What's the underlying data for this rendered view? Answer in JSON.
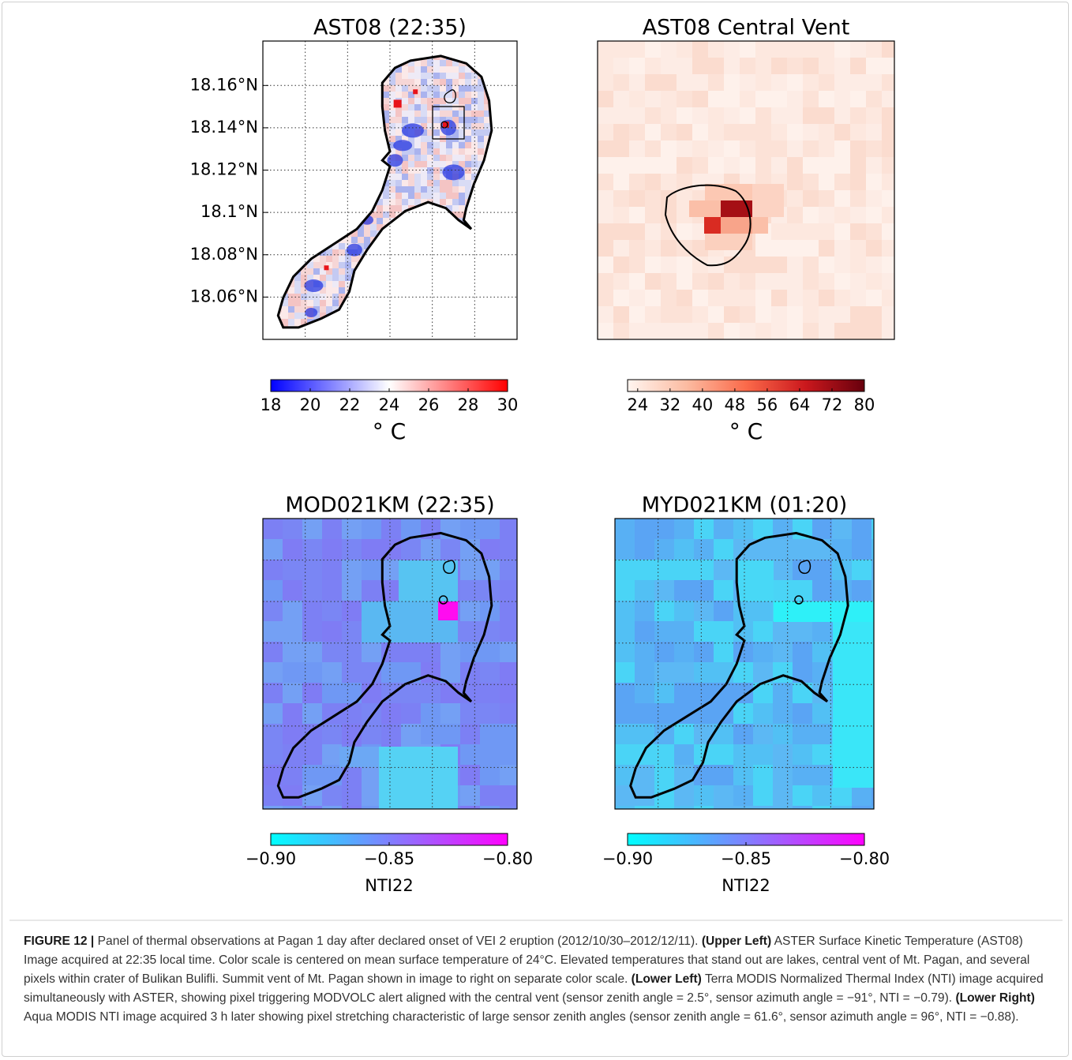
{
  "chart_data": [
    {
      "type": "heatmap",
      "title": "AST08 (22:35)",
      "ylim": [
        18.04,
        18.181
      ],
      "yticks": [
        {
          "value": 18.06,
          "label": "18.06°N"
        },
        {
          "value": 18.08,
          "label": "18.08°N"
        },
        {
          "value": 18.1,
          "label": "18.1°N"
        },
        {
          "value": 18.12,
          "label": "18.12°N"
        },
        {
          "value": 18.14,
          "label": "18.14°N"
        },
        {
          "value": 18.16,
          "label": "18.16°N"
        }
      ],
      "grid": true,
      "colorbar": {
        "lim": [
          18,
          30
        ],
        "ticks": [
          18,
          20,
          22,
          24,
          26,
          28,
          30
        ],
        "label": "° C",
        "colors": [
          "#0000ff",
          "#ffffff",
          "#ff0000"
        ]
      }
    },
    {
      "type": "heatmap",
      "title": "AST08 Central Vent",
      "colorbar": {
        "lim": [
          21.5,
          80
        ],
        "ticks": [
          24,
          32,
          40,
          48,
          56,
          64,
          72,
          80
        ],
        "label": "° C",
        "colors": [
          "#fff5f0",
          "#fcbba1",
          "#fb6a4a",
          "#cb181d",
          "#67000d"
        ]
      }
    },
    {
      "type": "heatmap",
      "title": "MOD021KM (22:35)",
      "grid": true,
      "colorbar": {
        "lim": [
          -0.9,
          -0.8
        ],
        "ticks": [
          {
            "value": -0.9,
            "label": "−0.90"
          },
          {
            "value": -0.85,
            "label": "−0.85"
          },
          {
            "value": -0.8,
            "label": "−0.80"
          }
        ],
        "label": "NTI22",
        "colors": [
          "#00ffff",
          "#ff00ff"
        ]
      }
    },
    {
      "type": "heatmap",
      "title": "MYD021KM (01:20)",
      "grid": true,
      "colorbar": {
        "lim": [
          -0.9,
          -0.8
        ],
        "ticks": [
          {
            "value": -0.9,
            "label": "−0.90"
          },
          {
            "value": -0.85,
            "label": "−0.85"
          },
          {
            "value": -0.8,
            "label": "−0.80"
          }
        ],
        "label": "NTI22",
        "colors": [
          "#00ffff",
          "#ff00ff"
        ]
      }
    }
  ],
  "caption": {
    "segments": [
      {
        "bold": true,
        "text": "FIGURE 12 |"
      },
      {
        "bold": false,
        "text": " Panel of thermal observations at Pagan 1 day after declared onset of VEI 2 eruption (2012/10/30–2012/12/11). "
      },
      {
        "bold": true,
        "text": "(Upper Left)"
      },
      {
        "bold": false,
        "text": " ASTER Surface Kinetic Temperature (AST08) Image acquired at 22:35 local time. Color scale is centered on mean surface temperature of 24°C. Elevated temperatures that stand out are lakes, central vent of Mt. Pagan, and several pixels within crater of Bulikan Bulifli. Summit vent of Mt. Pagan shown in image to right on separate color scale. "
      },
      {
        "bold": true,
        "text": "(Lower Left)"
      },
      {
        "bold": false,
        "text": " Terra MODIS Normalized Thermal Index (NTI) image acquired simultaneously with ASTER, showing pixel triggering MODVOLC alert aligned with the central vent (sensor zenith angle = 2.5°, sensor azimuth angle = −91°, NTI = −0.79). "
      },
      {
        "bold": true,
        "text": "(Lower Right)"
      },
      {
        "bold": false,
        "text": " Aqua MODIS NTI image acquired 3 h later showing pixel stretching characteristic of large sensor zenith angles (sensor zenith angle = 61.6°, sensor azimuth angle = 96°, NTI = −0.88)."
      }
    ]
  }
}
